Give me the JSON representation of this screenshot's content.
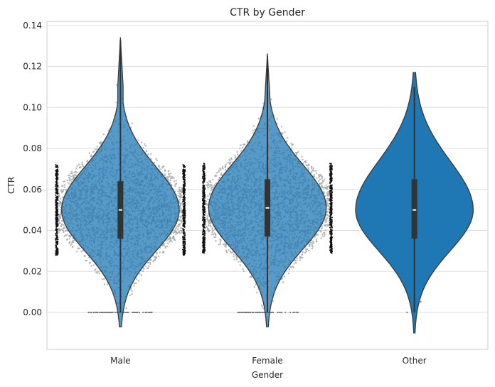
{
  "chart_data": {
    "type": "violin",
    "title": "CTR by Gender",
    "xlabel": "Gender",
    "ylabel": "CTR",
    "categories": [
      "Male",
      "Female",
      "Other"
    ],
    "ylim": [
      -0.018,
      0.142
    ],
    "yticks": [
      0.0,
      0.02,
      0.04,
      0.06,
      0.08,
      0.1,
      0.12,
      0.14
    ],
    "ytick_labels": [
      "0.00",
      "0.02",
      "0.04",
      "0.06",
      "0.08",
      "0.10",
      "0.12",
      "0.14"
    ],
    "grid": true,
    "color": "#1f77b4",
    "edge_color": "#3a3a3a",
    "swarm_color": "#9a9a9a",
    "groups": [
      {
        "name": "Male",
        "median": 0.05,
        "q1": 0.036,
        "q3": 0.064,
        "whisker_low": 0.0,
        "whisker_high": 0.133,
        "kde_min": -0.007,
        "kde_max": 0.134,
        "swarm": true,
        "swarm_density": "high"
      },
      {
        "name": "Female",
        "median": 0.051,
        "q1": 0.037,
        "q3": 0.065,
        "whisker_low": 0.0,
        "whisker_high": 0.125,
        "kde_min": -0.007,
        "kde_max": 0.126,
        "swarm": true,
        "swarm_density": "high"
      },
      {
        "name": "Other",
        "median": 0.05,
        "q1": 0.036,
        "q3": 0.065,
        "whisker_low": 0.0,
        "whisker_high": 0.11,
        "kde_min": -0.01,
        "kde_max": 0.117,
        "swarm": true,
        "swarm_density": "low"
      }
    ]
  }
}
